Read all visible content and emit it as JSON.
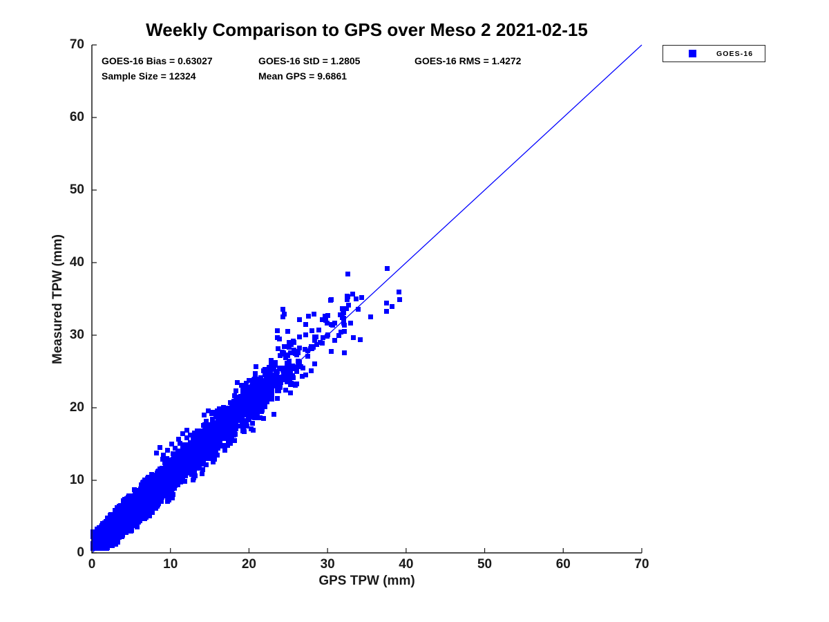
{
  "chart_data": {
    "type": "scatter",
    "title": "Weekly Comparison to GPS over Meso 2 2021-02-15",
    "xlabel": "GPS TPW (mm)",
    "ylabel": "Measured TPW (mm)",
    "xlim": [
      0,
      70
    ],
    "ylim": [
      0,
      70
    ],
    "x_ticks": [
      0,
      10,
      20,
      30,
      40,
      50,
      60,
      70
    ],
    "y_ticks": [
      0,
      10,
      20,
      30,
      40,
      50,
      60,
      70
    ],
    "grid": false,
    "box": false,
    "axis_color": "#1a1a1a",
    "background": "#ffffff",
    "annotations": [
      "GOES-16 Bias = 0.63027",
      "GOES-16 StD = 1.2805",
      "GOES-16 RMS = 1.4272",
      "Sample Size = 12324",
      "Mean GPS = 9.6861"
    ],
    "legend": {
      "position": "outside-top-right",
      "entries": [
        {
          "label": "GOES-16",
          "marker": "square",
          "color": "#0000FF"
        }
      ]
    },
    "reference_line": {
      "from": [
        0,
        0
      ],
      "to": [
        70,
        70
      ],
      "color": "#0000FF",
      "width": 1.2
    },
    "series": [
      {
        "name": "GOES-16",
        "marker": "square",
        "marker_size_px": 7,
        "color": "#0000FF",
        "stats": {
          "bias": 0.63027,
          "std": 1.2805,
          "rms": 1.4272,
          "sample_size": 12324,
          "mean_gps": 9.6861
        },
        "x_range": [
          0.15,
          40
        ],
        "point_cloud": {
          "seed": 20210215,
          "attempts": 6500,
          "x_mean": 8.8,
          "noise_base": 0.75,
          "noise_slope": 0.04,
          "noise_max": 2.1,
          "dev_reject_sigma": 2.9,
          "y_min": 0.6,
          "x_max": 40.3,
          "accept_tiers": [
            [
              23,
              1.0
            ],
            [
              26,
              0.6
            ],
            [
              30,
              0.35
            ],
            [
              33,
              0.25
            ],
            [
              36,
              0.05
            ],
            [
              40.4,
              0.02
            ]
          ]
        },
        "outlier_points": [
          [
            37.6,
            39.2
          ],
          [
            39.1,
            36.0
          ],
          [
            39.2,
            34.9
          ],
          [
            37.5,
            34.4
          ],
          [
            37.5,
            33.3
          ],
          [
            38.2,
            34.0
          ],
          [
            34.3,
            35.2
          ],
          [
            33.2,
            35.7
          ],
          [
            33.6,
            35.0
          ],
          [
            32.5,
            35.4
          ],
          [
            30.5,
            34.9
          ],
          [
            33.9,
            33.6
          ],
          [
            24.3,
            33.6
          ],
          [
            24.3,
            32.5
          ],
          [
            24.5,
            32.9
          ],
          [
            26.4,
            32.1
          ],
          [
            28.3,
            32.9
          ],
          [
            29.7,
            32.6
          ],
          [
            31.9,
            32.4
          ],
          [
            32.1,
            31.4
          ],
          [
            23.9,
            29.5
          ],
          [
            24.9,
            30.5
          ],
          [
            26.4,
            29.8
          ],
          [
            28.0,
            30.6
          ],
          [
            28.9,
            30.7
          ],
          [
            31.4,
            30.0
          ],
          [
            32.1,
            30.5
          ],
          [
            33.3,
            29.7
          ],
          [
            34.2,
            29.4
          ],
          [
            30.5,
            27.8
          ],
          [
            32.1,
            27.6
          ],
          [
            28.0,
            28.4
          ],
          [
            23.6,
            30.6
          ],
          [
            23.6,
            29.7
          ],
          [
            25.1,
            28.3
          ],
          [
            27.2,
            31.5
          ],
          [
            29.3,
            28.9
          ],
          [
            30.9,
            29.3
          ],
          [
            8.2,
            13.8
          ],
          [
            8.7,
            14.5
          ],
          [
            9.1,
            13.5
          ],
          [
            9.6,
            14.1
          ],
          [
            10.2,
            15.0
          ],
          [
            11.0,
            15.7
          ],
          [
            11.6,
            16.4
          ],
          [
            12.1,
            16.9
          ],
          [
            12.5,
            16.2
          ],
          [
            10.6,
            14.4
          ],
          [
            11.2,
            15.1
          ],
          [
            9.0,
            12.9
          ],
          [
            14.3,
            19.0
          ],
          [
            14.8,
            19.6
          ],
          [
            15.3,
            19.2
          ]
        ]
      }
    ]
  }
}
